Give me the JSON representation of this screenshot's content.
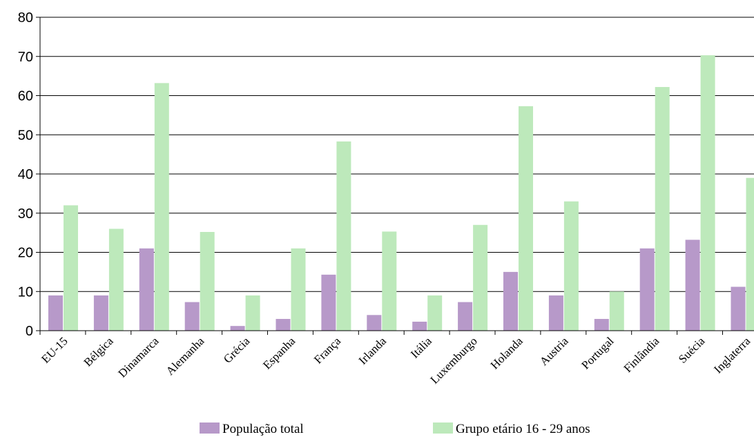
{
  "chart_data": {
    "type": "bar",
    "title": "",
    "xlabel": "",
    "ylabel": "",
    "ylim": [
      0,
      80
    ],
    "yticks": [
      0,
      10,
      20,
      30,
      40,
      50,
      60,
      70,
      80
    ],
    "grid": "horizontal",
    "legend_position": "bottom",
    "categories": [
      "EU-15",
      "Bélgica",
      "Dinamarca",
      "Alemanha",
      "Grécia",
      "Espanha",
      "França",
      "Irlanda",
      "Itália",
      "Luxemburgo",
      "Holanda",
      "Austria",
      "Portugal",
      "Finlândia",
      "Suécia",
      "Inglaterra"
    ],
    "series": [
      {
        "name": "População total",
        "color": "#b799c9",
        "values": [
          9,
          9,
          21,
          7.3,
          1.2,
          3,
          14.3,
          4,
          2.3,
          7.3,
          15,
          9,
          3,
          21,
          23.2,
          11.2
        ]
      },
      {
        "name": "Grupo etário 16 - 29 anos",
        "color": "#bde9bb",
        "values": [
          32,
          26,
          63.2,
          25.2,
          9,
          21,
          48.3,
          25.3,
          9,
          27,
          57.3,
          33,
          10,
          62.2,
          70.3,
          39
        ]
      }
    ]
  }
}
